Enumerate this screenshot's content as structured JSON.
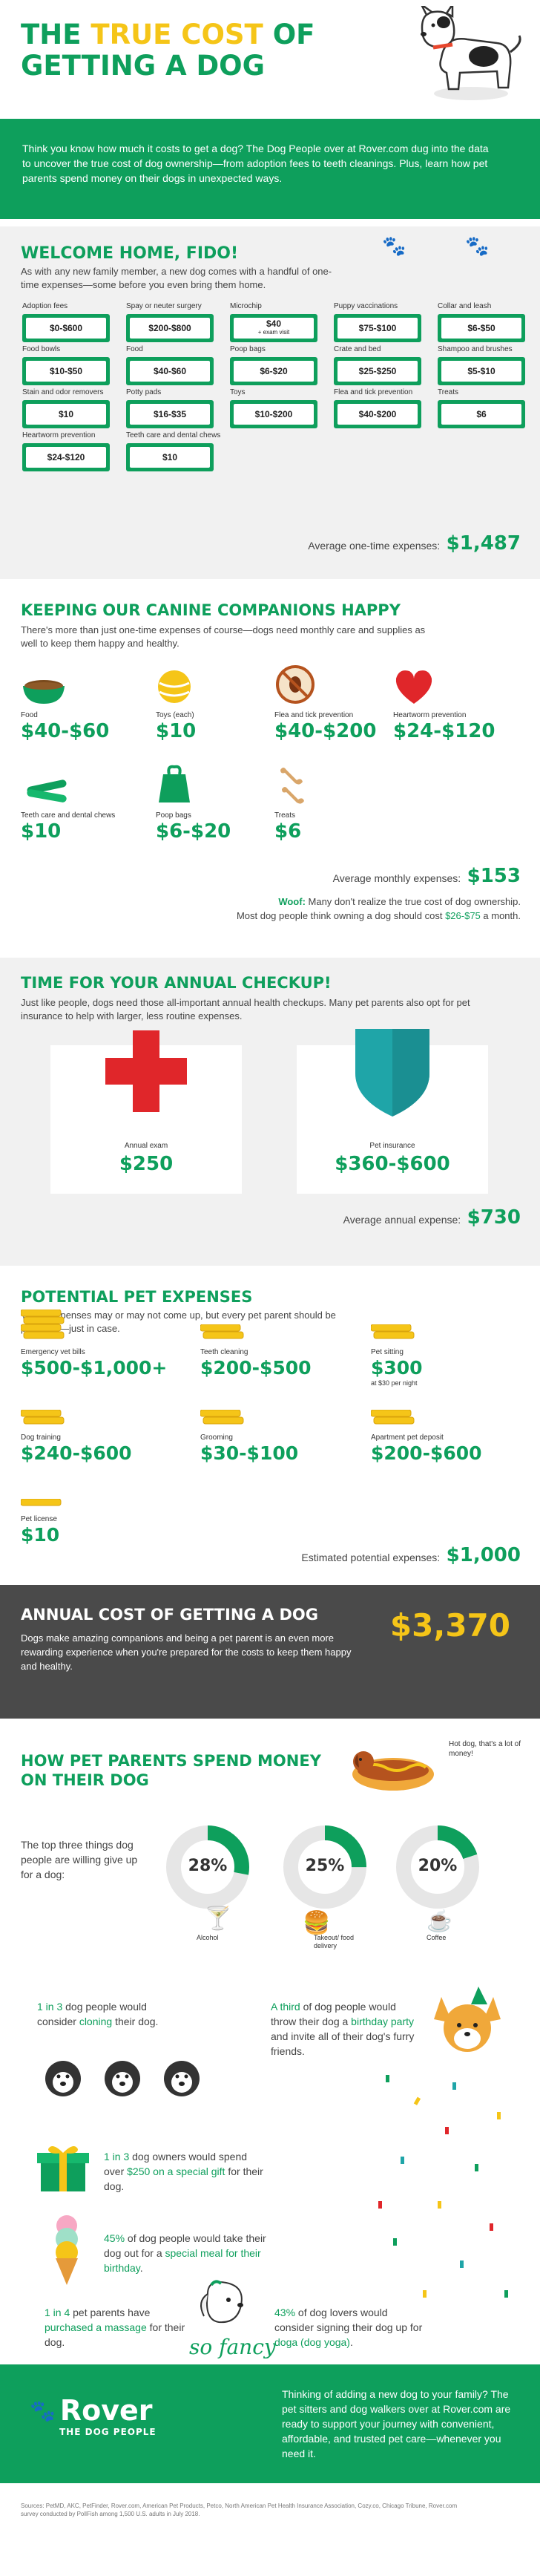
{
  "hero": {
    "title_line1_a": "THE ",
    "title_line1_b": "TRUE COST",
    "title_line1_c": " OF",
    "title_line2": "GETTING A DOG",
    "intro": "Think you know how much it costs to get a dog? The Dog People over at Rover.com dug into the data to uncover the true cost of dog ownership—from adoption fees to teeth cleanings. Plus, learn how pet parents spend money on their dogs in unexpected ways."
  },
  "welcome": {
    "heading": "WELCOME HOME, FIDO!",
    "text": "As with any new family member, a new dog comes with a handful of one-time expenses—some before you even bring them home.",
    "items": [
      {
        "label": "Adoption fees",
        "value": "$0-$600"
      },
      {
        "label": "Spay or neuter surgery",
        "value": "$200-$800"
      },
      {
        "label": "Microchip",
        "value": "$40",
        "note": "+ exam visit"
      },
      {
        "label": "Puppy vaccinations",
        "value": "$75-$100"
      },
      {
        "label": "Collar and leash",
        "value": "$6-$50"
      },
      {
        "label": "Food bowls",
        "value": "$10-$50"
      },
      {
        "label": "Food",
        "value": "$40-$60"
      },
      {
        "label": "Poop bags",
        "value": "$6-$20"
      },
      {
        "label": "Crate and bed",
        "value": "$25-$250"
      },
      {
        "label": "Shampoo and brushes",
        "value": "$5-$10"
      },
      {
        "label": "Stain and odor removers",
        "value": "$10"
      },
      {
        "label": "Potty pads",
        "value": "$16-$35"
      },
      {
        "label": "Toys",
        "value": "$10-$200"
      },
      {
        "label": "Flea and tick prevention",
        "value": "$40-$200"
      },
      {
        "label": "Treats",
        "value": "$6"
      },
      {
        "label": "Heartworm prevention",
        "value": "$24-$120"
      },
      {
        "label": "Teeth care and dental chews",
        "value": "$10"
      }
    ],
    "total_label": "Average one-time expenses:",
    "total_value": "$1,487"
  },
  "monthly": {
    "heading": "KEEPING OUR CANINE COMPANIONS HAPPY",
    "text": "There's more than just one-time expenses of course—dogs need monthly care and supplies as well to keep them happy and healthy.",
    "items": [
      {
        "label": "Food",
        "value": "$40-$60",
        "icon": "dog-bowl-icon"
      },
      {
        "label": "Toys (each)",
        "value": "$10",
        "icon": "toy-ball-icon"
      },
      {
        "label": "Flea and tick prevention",
        "value": "$40-$200",
        "icon": "no-flea-icon"
      },
      {
        "label": "Heartworm prevention",
        "value": "$24-$120",
        "icon": "heart-icon"
      },
      {
        "label": "Teeth care and dental chews",
        "value": "$10",
        "icon": "dental-chew-icon"
      },
      {
        "label": "Poop bags",
        "value": "$6-$20",
        "icon": "poop-bag-icon"
      },
      {
        "label": "Treats",
        "value": "$6",
        "icon": "treats-icon"
      }
    ],
    "total_label": "Average monthly expenses:",
    "total_value": "$153",
    "woof_a": "Woof:",
    "woof_b": " Many don't realize the true cost of dog ownership.",
    "woof_c": "Most dog people think owning a dog should cost ",
    "woof_d": "$26-$75",
    "woof_e": " a month."
  },
  "annual": {
    "heading": "TIME FOR YOUR ANNUAL CHECKUP!",
    "text": "Just like people, dogs need those all-important annual health checkups. Many pet parents also opt for pet insurance to help with larger, less routine expenses.",
    "exam_label": "Annual exam",
    "exam_value": "$250",
    "insurance_label": "Pet insurance",
    "insurance_value": "$360-$600",
    "total_label": "Average annual expense:",
    "total_value": "$730"
  },
  "potential": {
    "heading": "POTENTIAL PET EXPENSES",
    "text": "These expenses may or may not come up, but every pet parent should be prepared—just in case.",
    "items": [
      {
        "label": "Emergency vet bills",
        "value": "$500-$1,000+"
      },
      {
        "label": "Teeth cleaning",
        "value": "$200-$500"
      },
      {
        "label": "Pet sitting",
        "value": "$300",
        "note": "at $30 per night"
      },
      {
        "label": "Dog training",
        "value": "$240-$600"
      },
      {
        "label": "Grooming",
        "value": "$30-$100"
      },
      {
        "label": "Apartment pet deposit",
        "value": "$200-$600"
      },
      {
        "label": "Pet license",
        "value": "$10"
      }
    ],
    "total_label": "Estimated potential expenses:",
    "total_value": "$1,000"
  },
  "annual_cost": {
    "heading": "ANNUAL COST OF GETTING A DOG",
    "value": "$3,370",
    "text": "Dogs make amazing companions and being a pet parent is an even more rewarding experience when you're prepared for the costs to keep them happy and healthy."
  },
  "spend": {
    "heading_line1": "HOW PET PARENTS SPEND MONEY",
    "heading_line2": "ON THEIR DOG",
    "hotdog_note": "Hot dog, that's a lot of money!",
    "giveup_text": "The top three things dog people are willing give up for a dog:",
    "donuts": [
      {
        "pct": "28%",
        "value": 28,
        "label": "Alcohol"
      },
      {
        "pct": "25%",
        "value": 25,
        "label": "Takeout/ food delivery"
      },
      {
        "pct": "20%",
        "value": 20,
        "label": "Coffee"
      }
    ],
    "cloning_a": "1 in 3",
    "cloning_b": " dog people would consider ",
    "cloning_c": "cloning",
    "cloning_d": " their dog.",
    "party_a": "A third",
    "party_b": " of dog people would throw their dog a ",
    "party_c": "birthday party",
    "party_d": " and invite all of their dog's furry friends.",
    "gift_a": "1 in 3",
    "gift_b": " dog owners would spend over ",
    "gift_c": "$250 on a special gift",
    "gift_d": " for their dog.",
    "meal_a": "45%",
    "meal_b": " of dog people would take their dog out for a ",
    "meal_c": "special meal for their birthday",
    "meal_d": ".",
    "massage_a": "1 in 4",
    "massage_b": " pet parents have ",
    "massage_c": "purchased a massage",
    "massage_d": " for their dog.",
    "yoga_a": "43%",
    "yoga_b": " of dog lovers would consider signing their dog up for ",
    "yoga_c": "doga (dog yoga)",
    "yoga_d": ".",
    "so_fancy": "so fancy"
  },
  "footer": {
    "logo": "Rover",
    "logo_sub": "THE DOG PEOPLE",
    "text": "Thinking of adding a new dog to your family? The pet sitters and dog walkers over at Rover.com are ready to support your journey with convenient, affordable, and trusted pet care—whenever you need it.",
    "sources": "Sources: PetMD, AKC, PetFinder, Rover.com, American Pet Products, Petco, North American Pet Health Insurance Association, Cozy.co, Chicago Tribune, Rover.com survey conducted by PollFish among 1,500 U.S. adults in July 2018."
  },
  "colors": {
    "brand_green": "#0e9f5c",
    "yellow": "#f5c518",
    "dark_band": "#4a4a4a",
    "light_band": "#f1f1f1"
  }
}
